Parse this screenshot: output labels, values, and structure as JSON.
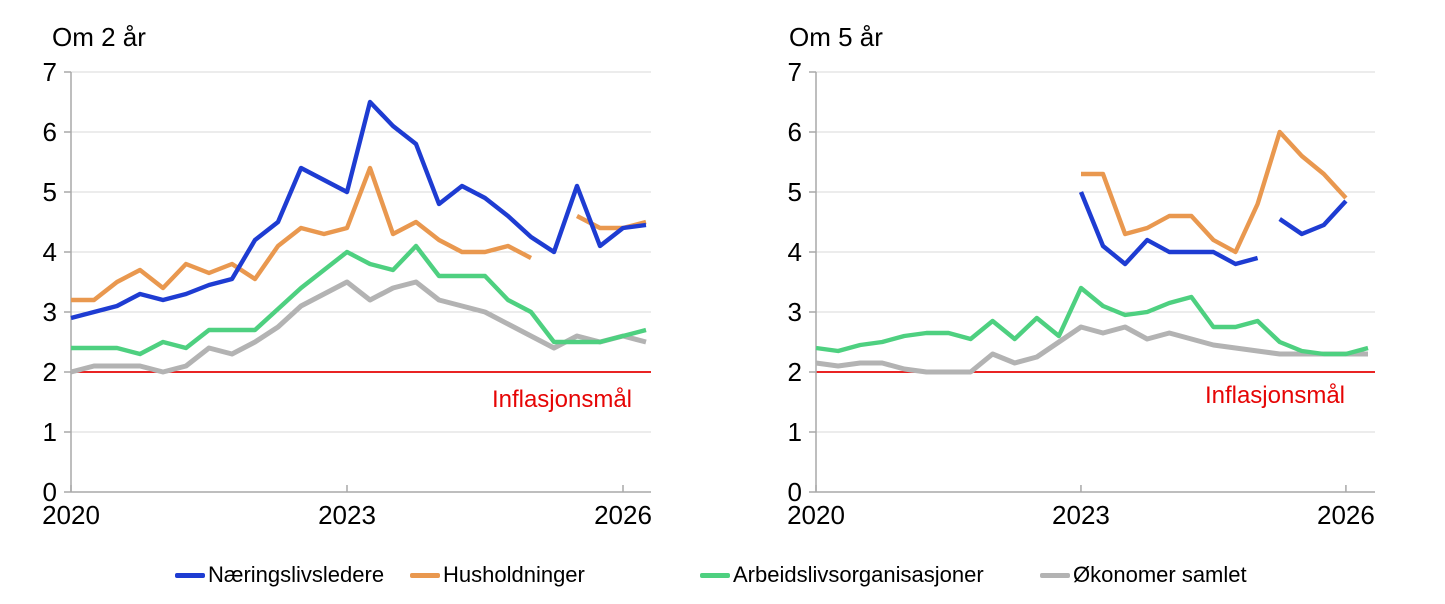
{
  "legend": [
    {
      "label": "Næringslivsledere",
      "color": "#1e3cd2"
    },
    {
      "label": "Husholdninger",
      "color": "#e9984f"
    },
    {
      "label": "Arbeidslivsorganisasjoner",
      "color": "#4ed080"
    },
    {
      "label": "Økonomer samlet",
      "color": "#b3b3b3"
    }
  ],
  "colors": {
    "target_line": "#e60505",
    "grid": "#d9d9d9",
    "axis": "#a8a8a8",
    "text": "#000000"
  },
  "chart_data": [
    {
      "type": "line",
      "title": "Om 2 år",
      "x_note": "quarterly observations 2020Q1 - 2026Q2",
      "x_tick_labels": [
        {
          "label": "2020",
          "index": 0
        },
        {
          "label": "2023",
          "index": 12
        },
        {
          "label": "2026",
          "index": 24
        }
      ],
      "ylim": [
        0,
        7
      ],
      "y_tick_labels": [
        "0",
        "1",
        "2",
        "3",
        "4",
        "5",
        "6",
        "7"
      ],
      "grid": true,
      "target_line": {
        "value": 2,
        "label": "Inflasjonsmål"
      },
      "series": [
        {
          "name": "Økonomer samlet",
          "color": "#b3b3b3",
          "width": 5,
          "values": [
            2.0,
            2.1,
            2.1,
            2.1,
            2.0,
            2.1,
            2.4,
            2.3,
            2.5,
            2.75,
            3.1,
            3.3,
            3.5,
            3.2,
            3.4,
            3.5,
            3.2,
            3.1,
            3.0,
            2.8,
            2.6,
            2.4,
            2.6,
            2.5,
            2.6,
            2.5
          ]
        },
        {
          "name": "Arbeidslivsorganisasjoner",
          "color": "#4ed080",
          "width": 4.4,
          "values": [
            2.4,
            2.4,
            2.4,
            2.3,
            2.5,
            2.4,
            2.7,
            2.7,
            2.7,
            3.05,
            3.4,
            3.7,
            4.0,
            3.8,
            3.7,
            4.1,
            3.6,
            3.6,
            3.6,
            3.2,
            3.0,
            2.5,
            2.5,
            2.5,
            2.6,
            2.7
          ]
        },
        {
          "name": "Husholdninger",
          "color": "#e9984f",
          "width": 4.4,
          "values": [
            3.2,
            3.2,
            3.5,
            3.7,
            3.4,
            3.8,
            3.65,
            3.8,
            3.55,
            4.1,
            4.4,
            4.3,
            4.4,
            5.4,
            4.3,
            4.5,
            4.2,
            4.0,
            4.0,
            4.1,
            3.9,
            null,
            4.6,
            4.4,
            4.4,
            4.5
          ]
        },
        {
          "name": "Næringslivsledere",
          "color": "#1e3cd2",
          "width": 4.4,
          "values": [
            2.9,
            3.0,
            3.1,
            3.3,
            3.2,
            3.3,
            3.45,
            3.55,
            4.2,
            4.5,
            5.4,
            5.2,
            5.0,
            6.5,
            6.1,
            5.8,
            4.8,
            5.1,
            4.9,
            4.6,
            4.25,
            4.0,
            5.1,
            4.1,
            4.4,
            4.45
          ]
        }
      ]
    },
    {
      "type": "line",
      "title": "Om 5 år",
      "x_note": "quarterly observations 2020Q1 - 2026Q2",
      "x_tick_labels": [
        {
          "label": "2020",
          "index": 0
        },
        {
          "label": "2023",
          "index": 12
        },
        {
          "label": "2026",
          "index": 24
        }
      ],
      "ylim": [
        0,
        7
      ],
      "y_tick_labels": [
        "0",
        "1",
        "2",
        "3",
        "4",
        "5",
        "6",
        "7"
      ],
      "grid": true,
      "target_line": {
        "value": 2,
        "label": "Inflasjonsmål"
      },
      "series": [
        {
          "name": "Økonomer samlet",
          "color": "#b3b3b3",
          "width": 5,
          "values": [
            2.15,
            2.1,
            2.15,
            2.15,
            2.05,
            2.0,
            2.0,
            2.0,
            2.3,
            2.15,
            2.25,
            2.5,
            2.75,
            2.65,
            2.75,
            2.55,
            2.65,
            2.55,
            2.45,
            2.4,
            2.35,
            2.3,
            2.3,
            2.3,
            2.3,
            2.3
          ]
        },
        {
          "name": "Arbeidslivsorganisasjoner",
          "color": "#4ed080",
          "width": 4.4,
          "values": [
            2.4,
            2.35,
            2.45,
            2.5,
            2.6,
            2.65,
            2.65,
            2.55,
            2.85,
            2.55,
            2.9,
            2.6,
            3.4,
            3.1,
            2.95,
            3.0,
            3.15,
            3.25,
            2.75,
            2.75,
            2.85,
            2.5,
            2.35,
            2.3,
            2.3,
            2.4
          ]
        },
        {
          "name": "Husholdninger",
          "color": "#e9984f",
          "width": 4.4,
          "values": [
            null,
            null,
            null,
            null,
            null,
            null,
            null,
            null,
            null,
            null,
            null,
            null,
            5.3,
            5.3,
            4.3,
            4.4,
            4.6,
            4.6,
            4.2,
            4.0,
            4.8,
            6.0,
            5.6,
            5.3,
            4.9,
            null
          ]
        },
        {
          "name": "Næringslivsledere",
          "color": "#1e3cd2",
          "width": 4.4,
          "breaks": [
            21
          ],
          "values": [
            null,
            null,
            null,
            null,
            null,
            null,
            null,
            null,
            null,
            null,
            null,
            null,
            5.0,
            4.1,
            3.8,
            4.2,
            4.0,
            4.0,
            4.0,
            3.8,
            3.9,
            4.55,
            4.3,
            4.45,
            4.85,
            null
          ]
        }
      ]
    }
  ]
}
